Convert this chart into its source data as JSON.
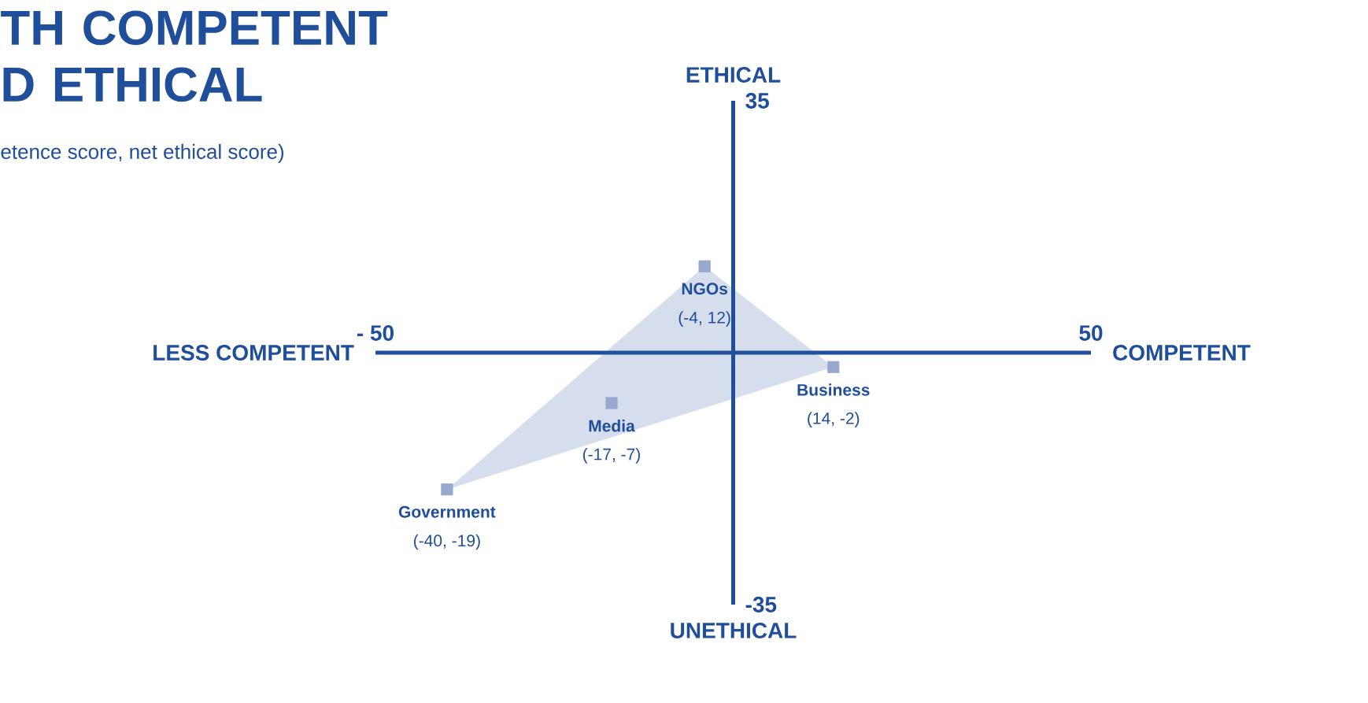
{
  "chart_data": {
    "type": "scatter",
    "title": "TH COMPETENT D ETHICAL",
    "subtitle": "etence score, net ethical score)",
    "xlabel": "COMPETENT",
    "ylabel": "ETHICAL",
    "xlim": [
      -50,
      50
    ],
    "ylim": [
      -35,
      35
    ],
    "xticks": [
      {
        "value": -50,
        "label": "- 50"
      },
      50
    ],
    "yticks": [
      -35,
      35
    ],
    "series": [
      {
        "type": "area",
        "marker": "none",
        "color": "#d6deee",
        "x": [
          -4,
          14,
          -40
        ],
        "values": [
          12,
          -2,
          -19
        ]
      },
      {
        "type": "scatter",
        "marker": "square",
        "color": "#98a9cf",
        "x": [
          -4,
          14,
          -17,
          -40
        ],
        "values": [
          12,
          -2,
          -7,
          -19
        ],
        "value_labels": [
          "(-4, 12)",
          "(14, -2)",
          "(-17, -7)",
          "(-40, -19)"
        ]
      }
    ],
    "annotations": [
      {
        "text": "NGOs",
        "x": -4,
        "y": 12
      },
      {
        "text": "Business",
        "x": 14,
        "y": -2
      },
      {
        "text": "Media",
        "x": -17,
        "y": -7
      },
      {
        "text": "Government",
        "x": -40,
        "y": -19
      },
      "LESS COMPETENT",
      "UNETHICAL"
    ]
  }
}
